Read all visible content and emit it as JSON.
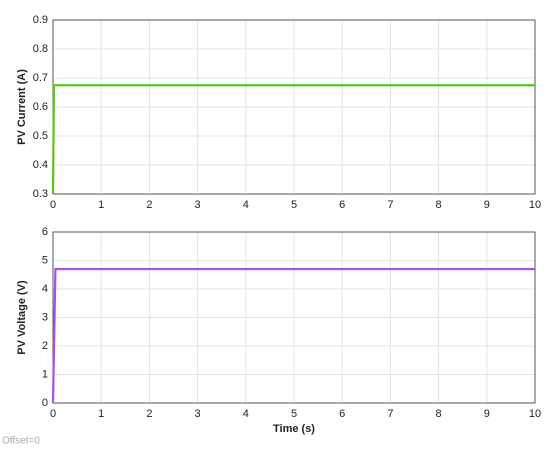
{
  "chart_data": [
    {
      "type": "line",
      "ylabel": "PV Current (A)",
      "x": [
        0,
        0.02,
        10
      ],
      "values": [
        0.3,
        0.675,
        0.675
      ],
      "color": "#5cc41c",
      "xlim": [
        0,
        10
      ],
      "xticks": [
        0,
        1,
        2,
        3,
        4,
        5,
        6,
        7,
        8,
        9,
        10
      ],
      "ylim": [
        0.3,
        0.9
      ],
      "yticks": [
        0.3,
        0.4,
        0.5,
        0.6,
        0.7,
        0.8,
        0.9
      ],
      "grid": true
    },
    {
      "type": "line",
      "ylabel": "PV Voltage (V)",
      "xlabel": "Time (s)",
      "x": [
        0,
        0.05,
        10
      ],
      "values": [
        0,
        4.7,
        4.7
      ],
      "color": "#a64ee6",
      "xlim": [
        0,
        10
      ],
      "xticks": [
        0,
        1,
        2,
        3,
        4,
        5,
        6,
        7,
        8,
        9,
        10
      ],
      "ylim": [
        0,
        6
      ],
      "yticks": [
        0,
        1,
        2,
        3,
        4,
        5,
        6
      ],
      "grid": true,
      "annotation": "Offset=0"
    }
  ]
}
